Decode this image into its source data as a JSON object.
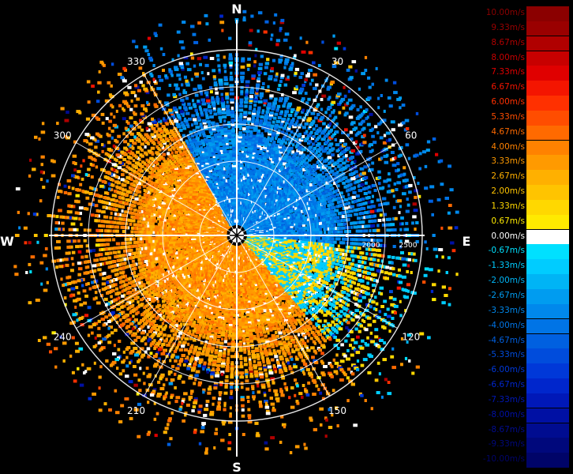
{
  "chart_data": {
    "type": "polar",
    "compass": {
      "north": "N",
      "east": "E",
      "south": "S",
      "west": "W"
    },
    "angle_labels": [
      "30",
      "60",
      "120",
      "150",
      "210",
      "240",
      "300",
      "330"
    ],
    "range_labels": [
      "2000",
      "2500"
    ],
    "rmax": 2500,
    "ring_step": 500,
    "spoke_step_deg": 30,
    "dominant_pattern": {
      "north_to_east_sector": "negative (blue)",
      "west_and_south_sectors": "positive (yellow/orange)"
    },
    "colorbar": {
      "min": -10.0,
      "max": 10.0,
      "unit": "m/s",
      "labels": [
        "10.00m/s",
        "9.33m/s",
        "8.67m/s",
        "8.00m/s",
        "7.33m/s",
        "6.67m/s",
        "6.00m/s",
        "5.33m/s",
        "4.67m/s",
        "4.00m/s",
        "3.33m/s",
        "2.67m/s",
        "2.00m/s",
        "1.33m/s",
        "0.67m/s",
        "0.00m/s",
        "-0.67m/s",
        "-1.33m/s",
        "-2.00m/s",
        "-2.67m/s",
        "-3.33m/s",
        "-4.00m/s",
        "-4.67m/s",
        "-5.33m/s",
        "-6.00m/s",
        "-6.67m/s",
        "-7.33m/s",
        "-8.00m/s",
        "-8.67m/s",
        "-9.33m/s",
        "-10.00m/s"
      ],
      "colors": [
        "#8b0000",
        "#9a0000",
        "#b00000",
        "#c80000",
        "#e00000",
        "#f41500",
        "#ff3000",
        "#ff4d00",
        "#ff6a00",
        "#ff8200",
        "#ff9a00",
        "#ffb000",
        "#ffc400",
        "#ffd800",
        "#ffea00",
        "#ffffff",
        "#00e0ff",
        "#00ccff",
        "#00b4f5",
        "#009cf0",
        "#0088ec",
        "#0074e6",
        "#0060e0",
        "#004cdc",
        "#0038d8",
        "#0026cc",
        "#0018b8",
        "#0010a4",
        "#000c90",
        "#00087c",
        "#000468"
      ]
    }
  }
}
